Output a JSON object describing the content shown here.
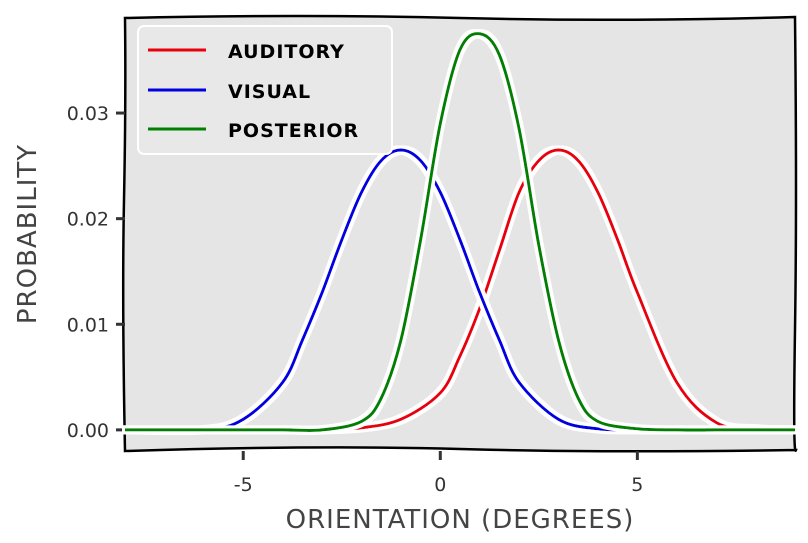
{
  "chart_data": {
    "type": "line",
    "xlabel": "ORIENTATION (DEGREES)",
    "ylabel": "PROBABILITY",
    "xlim": [
      -8,
      9
    ],
    "ylim": [
      -0.002,
      0.039
    ],
    "x_ticks": [
      -5,
      0,
      5
    ],
    "x_tick_labels": [
      "-5",
      "0",
      "5"
    ],
    "y_ticks": [
      0.0,
      0.01,
      0.02,
      0.03
    ],
    "y_tick_labels": [
      "0.00",
      "0.01",
      "0.02",
      "0.03"
    ],
    "grid": false,
    "legend_position": "top-left",
    "series": [
      {
        "name": "AUDITORY",
        "color": "#e8000b",
        "x": [
          -8,
          -6,
          -4,
          -3,
          -2,
          -1,
          0,
          0.5,
          1,
          1.5,
          2,
          2.5,
          3,
          3.5,
          4,
          4.5,
          5,
          6,
          7,
          8,
          9
        ],
        "values": [
          0.0,
          0.0,
          0.0,
          0.0,
          0.0002,
          0.001,
          0.0035,
          0.007,
          0.0115,
          0.017,
          0.0225,
          0.0255,
          0.0265,
          0.0255,
          0.0225,
          0.018,
          0.013,
          0.0045,
          0.0007,
          0.0001,
          0.0
        ]
      },
      {
        "name": "VISUAL",
        "color": "#0000e0",
        "x": [
          -8,
          -6,
          -5,
          -4,
          -3.5,
          -3,
          -2.5,
          -2,
          -1.5,
          -1,
          -0.5,
          0,
          0.5,
          1,
          1.5,
          2,
          3,
          4,
          5,
          6,
          7,
          8,
          9
        ],
        "values": [
          0.0,
          0.0,
          0.001,
          0.0045,
          0.0085,
          0.013,
          0.018,
          0.0225,
          0.0255,
          0.0265,
          0.0255,
          0.0225,
          0.018,
          0.013,
          0.0085,
          0.0045,
          0.001,
          0.0001,
          0.0,
          0.0,
          0.0,
          0.0,
          0.0
        ]
      },
      {
        "name": "POSTERIOR",
        "color": "#008000",
        "x": [
          -8,
          -6,
          -4,
          -3,
          -2,
          -1.5,
          -1,
          -0.5,
          0,
          0.5,
          1,
          1.5,
          2,
          2.5,
          3,
          3.5,
          4,
          5,
          6,
          7,
          8,
          9
        ],
        "values": [
          0.0,
          0.0,
          0.0,
          0.0,
          0.0008,
          0.003,
          0.0085,
          0.018,
          0.029,
          0.036,
          0.0375,
          0.0355,
          0.0285,
          0.0175,
          0.0085,
          0.003,
          0.0008,
          0.0001,
          0.0,
          0.0,
          0.0,
          0.0
        ]
      }
    ]
  }
}
